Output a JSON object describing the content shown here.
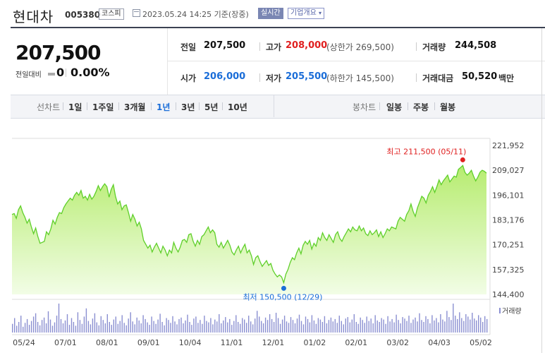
{
  "header": {
    "title": "현대차",
    "code": "005380",
    "market": "코스피",
    "datetime": "2023.05.24 14:25 기준(장중)",
    "realtime_label": "실시간",
    "company_button": "기업개요",
    "company_button_icon": "chevron-down-icon"
  },
  "price": {
    "current": "207,500",
    "change_label": "전일대비",
    "change_value": "0",
    "change_pct": "0.00%"
  },
  "stats": {
    "prev_close_label": "전일",
    "prev_close": "207,500",
    "high_label": "고가",
    "high": "208,000",
    "upper_limit": "(상한가 269,500)",
    "volume_label": "거래량",
    "volume": "244,508",
    "open_label": "시가",
    "open": "206,000",
    "low_label": "저가",
    "low": "205,500",
    "lower_limit": "(하한가 145,500)",
    "trade_value_label": "거래대금",
    "trade_value": "50,520",
    "trade_value_unit": "백만"
  },
  "tabs": {
    "line_label": "선차트",
    "line_periods": [
      "1일",
      "1주일",
      "3개월",
      "1년",
      "3년",
      "5년",
      "10년"
    ],
    "active_period": "1년",
    "candle_label": "봉차트",
    "candle_periods": [
      "일봉",
      "주봉",
      "월봉"
    ]
  },
  "colors": {
    "red": "#e02020",
    "blue": "#1a6dd8",
    "line": "#5fcf2a",
    "fill": "#c9f08d",
    "volume": "#8a8fd1"
  },
  "chart_data": {
    "type": "area",
    "y_ticks": [
      "221,952",
      "209,027",
      "196,101",
      "183,176",
      "170,251",
      "157,325",
      "144,400"
    ],
    "ylim": [
      144400,
      221952
    ],
    "x_ticks": [
      "05/24",
      "07/01",
      "08/01",
      "09/01",
      "10/04",
      "11/01",
      "12/01",
      "01/02",
      "02/01",
      "03/02",
      "04/03",
      "05/02"
    ],
    "max_label": "최고 211,500 (05/11)",
    "min_label": "최저 150,500 (12/29)",
    "max_value": 211500,
    "min_value": 150500,
    "volume_label": "거래량",
    "prices": [
      186000,
      186500,
      184000,
      188500,
      190500,
      187000,
      184500,
      181500,
      183500,
      179500,
      176000,
      179000,
      174500,
      171000,
      171500,
      172000,
      177000,
      175500,
      178500,
      183000,
      181000,
      184500,
      187000,
      186500,
      189500,
      191500,
      193000,
      194500,
      193500,
      196000,
      197500,
      196000,
      198500,
      194500,
      195500,
      193500,
      196500,
      194000,
      195500,
      198000,
      201000,
      198500,
      200500,
      202000,
      200500,
      195000,
      199000,
      201500,
      195500,
      191500,
      193000,
      188500,
      190500,
      191000,
      187000,
      182500,
      186000,
      183500,
      180000,
      182000,
      178500,
      172500,
      170500,
      168500,
      170000,
      166500,
      169000,
      171000,
      168500,
      166000,
      169500,
      167500,
      164500,
      167500,
      166000,
      171500,
      168500,
      166500,
      169000,
      172500,
      173000,
      171500,
      175500,
      176000,
      172000,
      169500,
      172500,
      170500,
      174500,
      175500,
      177500,
      179500,
      176500,
      178000,
      176500,
      170500,
      169000,
      171500,
      168500,
      170500,
      172500,
      170000,
      166500,
      165000,
      167500,
      169500,
      166000,
      168500,
      170500,
      166000,
      167500,
      164500,
      160000,
      163500,
      164500,
      161500,
      159000,
      160500,
      162000,
      159500,
      160500,
      157000,
      155000,
      153500,
      154500,
      153500,
      150500,
      155000,
      157500,
      161000,
      163500,
      162500,
      166000,
      168500,
      165500,
      170000,
      172000,
      170500,
      172500,
      168000,
      171000,
      169500,
      174000,
      172500,
      176500,
      174000,
      172500,
      175500,
      173500,
      171500,
      175500,
      177000,
      173500,
      172000,
      174500,
      176500,
      178500,
      177000,
      179500,
      178000,
      177500,
      180000,
      177500,
      179000,
      176000,
      175000,
      177500,
      175500,
      176500,
      178000,
      174500,
      177000,
      174000,
      176000,
      178500,
      177500,
      179500,
      179000,
      178500,
      182500,
      184500,
      183500,
      182500,
      186000,
      188000,
      191500,
      187500,
      185000,
      189500,
      192500,
      195500,
      194500,
      192000,
      196000,
      198000,
      200500,
      197500,
      200500,
      204000,
      201500,
      203500,
      205000,
      206500,
      203000,
      204500,
      206000,
      205500,
      209500,
      210500,
      211500,
      208000,
      206500,
      207500,
      209000,
      206000,
      203500,
      205500,
      208000,
      209000,
      208500,
      207500
    ],
    "volumes": [
      18,
      30,
      14,
      22,
      35,
      12,
      20,
      28,
      16,
      24,
      33,
      40,
      22,
      15,
      26,
      31,
      19,
      44,
      27,
      14,
      21,
      35,
      60,
      28,
      19,
      25,
      38,
      16,
      30,
      22,
      14,
      42,
      26,
      18,
      33,
      50,
      24,
      17,
      29,
      40,
      21,
      15,
      34,
      26,
      19,
      38,
      22,
      16,
      27,
      33,
      18,
      24,
      36,
      20,
      15,
      29,
      42,
      23,
      17,
      31,
      25,
      19,
      36,
      28,
      21,
      16,
      33,
      24,
      18,
      27,
      39,
      22,
      15,
      30,
      26,
      20,
      34,
      23,
      17,
      28,
      31,
      19,
      25,
      37,
      22,
      16,
      29,
      33,
      20,
      26,
      18,
      35,
      24,
      21,
      30,
      17,
      27,
      23,
      38,
      19,
      25,
      32,
      21,
      28,
      16,
      24,
      36,
      22,
      18,
      30,
      27,
      20,
      35,
      23,
      17,
      29,
      45,
      33,
      24,
      19,
      31,
      26,
      38,
      28,
      22,
      41,
      30,
      18,
      27,
      35,
      23,
      20,
      32,
      26,
      19,
      29,
      37,
      24,
      17,
      33,
      28,
      21,
      36,
      25,
      18,
      30,
      27,
      22,
      34,
      19,
      26,
      31,
      23,
      28,
      20,
      35,
      24,
      17,
      29,
      32,
      21,
      27,
      38,
      22,
      18,
      31,
      26,
      20,
      33,
      24,
      29,
      19,
      36,
      25,
      22,
      30,
      27,
      18,
      34,
      23,
      28,
      21,
      37,
      26,
      19,
      32,
      29,
      24,
      35,
      20,
      27,
      31,
      23,
      40,
      26,
      22,
      34,
      28,
      19,
      36,
      25,
      30,
      21,
      38,
      27,
      23,
      45,
      32,
      26,
      60,
      35,
      28,
      42,
      30,
      24,
      38,
      33,
      27,
      41,
      29,
      25,
      36,
      31,
      22,
      34,
      28
    ]
  }
}
